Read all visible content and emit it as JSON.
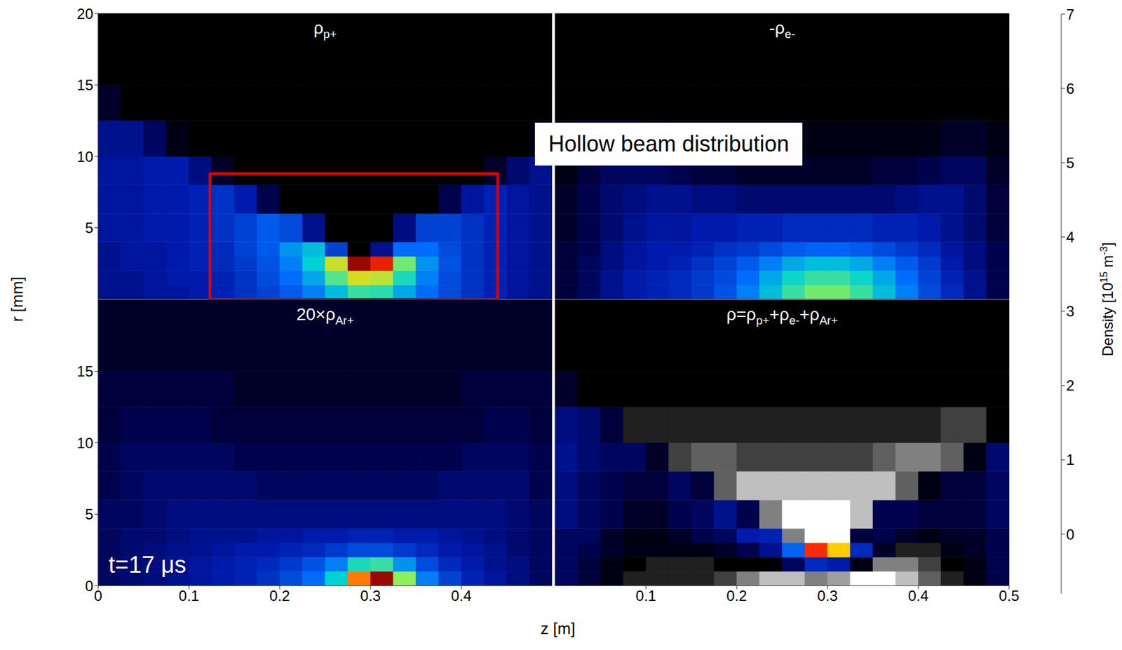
{
  "xlabel": "z [m]",
  "ylabel": "r [mm]",
  "annotation_box": "Hollow beam distribution",
  "time_label": "t=17 μs",
  "colorbar": {
    "label": [
      "Density [10",
      "15",
      " m",
      "-3",
      "]"
    ],
    "range": [
      -0.8,
      7
    ],
    "ticks": [
      0,
      1,
      2,
      3,
      4,
      5,
      6,
      7
    ]
  },
  "z_edges": [
    0,
    0.025,
    0.05,
    0.075,
    0.1,
    0.125,
    0.15,
    0.175,
    0.2,
    0.225,
    0.25,
    0.275,
    0.3,
    0.325,
    0.35,
    0.375,
    0.4,
    0.425,
    0.45,
    0.475,
    0.5
  ],
  "r_edges": [
    0,
    1,
    2,
    3,
    4,
    6,
    8,
    10,
    12.5,
    15,
    20
  ],
  "chart_data": [
    {
      "type": "heatmap",
      "title": [
        "ρ",
        "p+"
      ],
      "xlim": [
        0,
        0.5
      ],
      "ylim": [
        0,
        20
      ],
      "yticks": [
        5,
        10,
        15,
        20
      ],
      "tick_labels": "y",
      "highlight": {
        "z": [
          0.123,
          0.44
        ],
        "r": [
          0,
          8.8
        ],
        "color": "#e00000"
      },
      "cells": [
        [
          0.8,
          0.8,
          0.9,
          0.9,
          1.0,
          1.1,
          1.3,
          1.5,
          1.8,
          2.2,
          2.8,
          3.4,
          3.3,
          2.6,
          2.0,
          1.6,
          1.3,
          1.1,
          0.9,
          0.8
        ],
        [
          0.8,
          0.8,
          0.9,
          1.0,
          1.0,
          1.1,
          1.3,
          1.6,
          2.0,
          2.6,
          3.6,
          4.6,
          4.4,
          3.2,
          2.2,
          1.6,
          1.3,
          1.1,
          0.9,
          0.8
        ],
        [
          0.8,
          0.9,
          0.9,
          1.0,
          1.1,
          1.2,
          1.4,
          1.7,
          2.2,
          3.0,
          4.5,
          6.8,
          6.2,
          3.8,
          2.4,
          1.7,
          1.3,
          1.1,
          0.9,
          0.8
        ],
        [
          0.8,
          0.9,
          0.9,
          1.0,
          1.1,
          1.2,
          1.5,
          1.8,
          2.4,
          2.8,
          1.5,
          0,
          0.8,
          2.0,
          2.0,
          1.6,
          1.3,
          1.1,
          0.9,
          0.8
        ],
        [
          0.9,
          0.9,
          1.0,
          1.0,
          1.1,
          1.3,
          1.5,
          1.8,
          1.6,
          0.8,
          0,
          0,
          0,
          0.7,
          1.5,
          1.5,
          1.3,
          1.1,
          0.9,
          0.8
        ],
        [
          0.9,
          0.9,
          1.0,
          1.0,
          1.1,
          1.3,
          1.0,
          0.4,
          0,
          0,
          0,
          0,
          0,
          0,
          0,
          0.4,
          0.9,
          1.1,
          0.9,
          0.8
        ],
        [
          0.9,
          0.9,
          1.0,
          1.0,
          0.7,
          0.2,
          0,
          0,
          0,
          0,
          0,
          0,
          0,
          0,
          0,
          0,
          0,
          0.2,
          0.6,
          0.8
        ],
        [
          0.8,
          0.8,
          0.5,
          0.1,
          0,
          0,
          0,
          0,
          0,
          0,
          0,
          0,
          0,
          0,
          0,
          0,
          0,
          0,
          0,
          0.1
        ],
        [
          0.2,
          0,
          0,
          0,
          0,
          0,
          0,
          0,
          0,
          0,
          0,
          0,
          0,
          0,
          0,
          0,
          0,
          0,
          0,
          0
        ],
        [
          0,
          0,
          0,
          0,
          0,
          0,
          0,
          0,
          0,
          0,
          0,
          0,
          0,
          0,
          0,
          0,
          0,
          0,
          0,
          0
        ]
      ]
    },
    {
      "type": "heatmap",
      "title": [
        "-ρ",
        "e-"
      ],
      "xlim": [
        0,
        0.5
      ],
      "ylim": [
        0,
        20
      ],
      "tick_labels": false,
      "cells": [
        [
          0.3,
          0.5,
          0.8,
          1.0,
          1.1,
          1.2,
          1.4,
          1.7,
          2.2,
          2.8,
          3.4,
          3.8,
          3.8,
          3.4,
          2.8,
          2.2,
          1.6,
          1.2,
          0.8,
          0.4
        ],
        [
          0.3,
          0.5,
          0.8,
          1.0,
          1.1,
          1.2,
          1.4,
          1.6,
          2.0,
          2.6,
          3.1,
          3.4,
          3.4,
          3.1,
          2.6,
          2.0,
          1.5,
          1.1,
          0.8,
          0.4
        ],
        [
          0.3,
          0.5,
          0.7,
          0.9,
          1.0,
          1.1,
          1.3,
          1.5,
          1.8,
          2.2,
          2.6,
          2.8,
          2.8,
          2.6,
          2.2,
          1.8,
          1.4,
          1.0,
          0.7,
          0.4
        ],
        [
          0.3,
          0.4,
          0.7,
          0.9,
          1.0,
          1.0,
          1.1,
          1.3,
          1.4,
          1.6,
          1.8,
          1.9,
          1.9,
          1.8,
          1.6,
          1.4,
          1.2,
          0.9,
          0.7,
          0.4
        ],
        [
          0.2,
          0.4,
          0.6,
          0.8,
          0.9,
          0.9,
          1.0,
          1.0,
          1.1,
          1.1,
          1.2,
          1.2,
          1.2,
          1.2,
          1.1,
          1.1,
          1.0,
          0.8,
          0.6,
          0.3
        ],
        [
          0.2,
          0.4,
          0.6,
          0.7,
          0.8,
          0.8,
          0.7,
          0.7,
          0.6,
          0.6,
          0.6,
          0.6,
          0.6,
          0.6,
          0.6,
          0.7,
          0.8,
          0.8,
          0.6,
          0.3
        ],
        [
          0.1,
          0.3,
          0.5,
          0.5,
          0.5,
          0.4,
          0.3,
          0.3,
          0.2,
          0.2,
          0.2,
          0.2,
          0.2,
          0.2,
          0.3,
          0.3,
          0.4,
          0.5,
          0.5,
          0.2
        ],
        [
          0.1,
          0.2,
          0.2,
          0.2,
          0.1,
          0.1,
          0.1,
          0.1,
          0.1,
          0.1,
          0.1,
          0.1,
          0.1,
          0.1,
          0.1,
          0.1,
          0.1,
          0.2,
          0.2,
          0.1
        ],
        [
          0,
          0,
          0,
          0,
          0,
          0,
          0,
          0,
          0,
          0,
          0,
          0,
          0,
          0,
          0,
          0,
          0,
          0,
          0,
          0
        ],
        [
          0,
          0,
          0,
          0,
          0,
          0,
          0,
          0,
          0,
          0,
          0,
          0,
          0,
          0,
          0,
          0,
          0,
          0,
          0,
          0
        ]
      ]
    },
    {
      "type": "heatmap",
      "title": [
        "20×ρ",
        "Ar+"
      ],
      "xlim": [
        0,
        0.5
      ],
      "ylim": [
        0,
        20
      ],
      "xticks": [
        0,
        0.1,
        0.2,
        0.3,
        0.4
      ],
      "yticks": [
        0,
        5,
        10,
        15
      ],
      "tick_labels": true,
      "cells": [
        [
          0.5,
          0.6,
          0.7,
          0.8,
          0.9,
          1.0,
          1.1,
          1.3,
          1.6,
          2.0,
          3.0,
          5.5,
          6.8,
          4.0,
          2.2,
          1.5,
          1.1,
          0.9,
          0.7,
          0.5
        ],
        [
          0.5,
          0.6,
          0.7,
          0.8,
          0.9,
          1.0,
          1.1,
          1.2,
          1.4,
          1.7,
          2.2,
          3.2,
          3.4,
          2.4,
          1.6,
          1.2,
          1.0,
          0.8,
          0.7,
          0.5
        ],
        [
          0.5,
          0.6,
          0.7,
          0.8,
          0.8,
          0.9,
          1.0,
          1.0,
          1.1,
          1.2,
          1.4,
          1.6,
          1.6,
          1.4,
          1.2,
          1.0,
          0.9,
          0.8,
          0.6,
          0.5
        ],
        [
          0.5,
          0.6,
          0.6,
          0.7,
          0.8,
          0.8,
          0.8,
          0.9,
          0.9,
          1.0,
          1.0,
          1.1,
          1.1,
          1.0,
          1.0,
          0.9,
          0.8,
          0.7,
          0.6,
          0.5
        ],
        [
          0.5,
          0.5,
          0.6,
          0.7,
          0.7,
          0.7,
          0.7,
          0.7,
          0.7,
          0.7,
          0.7,
          0.7,
          0.7,
          0.7,
          0.7,
          0.7,
          0.7,
          0.7,
          0.6,
          0.5
        ],
        [
          0.4,
          0.5,
          0.6,
          0.6,
          0.6,
          0.6,
          0.6,
          0.5,
          0.5,
          0.5,
          0.5,
          0.5,
          0.5,
          0.5,
          0.5,
          0.6,
          0.6,
          0.6,
          0.6,
          0.4
        ],
        [
          0.4,
          0.5,
          0.5,
          0.5,
          0.5,
          0.5,
          0.4,
          0.4,
          0.4,
          0.4,
          0.4,
          0.4,
          0.4,
          0.4,
          0.4,
          0.4,
          0.5,
          0.5,
          0.5,
          0.4
        ],
        [
          0.3,
          0.4,
          0.4,
          0.4,
          0.4,
          0.3,
          0.3,
          0.3,
          0.3,
          0.3,
          0.3,
          0.3,
          0.3,
          0.3,
          0.3,
          0.3,
          0.3,
          0.4,
          0.4,
          0.3
        ],
        [
          0.3,
          0.3,
          0.3,
          0.3,
          0.3,
          0.3,
          0.2,
          0.2,
          0.2,
          0.2,
          0.2,
          0.2,
          0.2,
          0.2,
          0.2,
          0.2,
          0.3,
          0.3,
          0.3,
          0.3
        ],
        [
          0.2,
          0.2,
          0.2,
          0.2,
          0.2,
          0.2,
          0.2,
          0.2,
          0.2,
          0.2,
          0.2,
          0.2,
          0.2,
          0.2,
          0.2,
          0.2,
          0.2,
          0.2,
          0.2,
          0.2
        ]
      ]
    },
    {
      "type": "heatmap",
      "title": [
        "ρ=ρ",
        "p+",
        "+ρ",
        "e-",
        "+ρ",
        "Ar+"
      ],
      "xlim": [
        0,
        0.5
      ],
      "ylim": [
        0,
        20
      ],
      "xticks": [
        0.1,
        0.2,
        0.3,
        0.4,
        0.5
      ],
      "tick_labels": "x",
      "cells": [
        [
          0.5,
          0.3,
          0.1,
          -0.1,
          -0.1,
          -0.1,
          -0.1,
          -0.2,
          -0.4,
          -0.6,
          -0.6,
          -0.4,
          -0.5,
          -0.8,
          -0.8,
          -0.6,
          -0.3,
          -0.1,
          0.1,
          0.4
        ],
        [
          0.5,
          0.3,
          0.1,
          0,
          -0.1,
          -0.1,
          -0.1,
          0,
          0,
          0,
          0.5,
          1.2,
          1.0,
          0.1,
          -0.4,
          -0.4,
          -0.2,
          0,
          0.1,
          0.4
        ],
        [
          0.5,
          0.4,
          0.2,
          0.1,
          0.1,
          0.1,
          0.1,
          0.2,
          0.4,
          0.8,
          1.9,
          6.0,
          5.0,
          1.2,
          0.2,
          -0.1,
          -0.1,
          0.1,
          0.2,
          0.4
        ],
        [
          0.5,
          0.5,
          0.2,
          0.1,
          0.1,
          0.2,
          0.4,
          0.5,
          1.0,
          1.1,
          -0.4,
          -0.8,
          -0.8,
          0.3,
          0.4,
          0.2,
          0.1,
          0.2,
          0.2,
          0.4
        ],
        [
          0.7,
          0.5,
          0.4,
          0.2,
          0.2,
          0.4,
          0.5,
          0.8,
          0.4,
          -0.4,
          -0.8,
          -0.8,
          -0.8,
          -0.6,
          0.4,
          0.4,
          0.3,
          0.3,
          0.3,
          0.5
        ],
        [
          0.7,
          0.5,
          0.4,
          0.3,
          0.3,
          0.5,
          0.3,
          -0.3,
          -0.6,
          -0.6,
          -0.6,
          -0.6,
          -0.6,
          -0.6,
          -0.6,
          -0.3,
          0.1,
          0.3,
          0.3,
          0.5
        ],
        [
          0.8,
          0.6,
          0.5,
          0.5,
          0.2,
          -0.2,
          -0.3,
          -0.3,
          -0.2,
          -0.2,
          -0.2,
          -0.2,
          -0.2,
          -0.2,
          -0.3,
          -0.4,
          -0.4,
          -0.3,
          0.1,
          0.6
        ],
        [
          0.7,
          0.6,
          0.3,
          -0.1,
          -0.1,
          -0.1,
          -0.1,
          -0.1,
          -0.1,
          -0.1,
          -0.1,
          -0.1,
          -0.1,
          -0.1,
          -0.1,
          -0.1,
          -0.1,
          -0.2,
          -0.2,
          0
        ],
        [
          0.2,
          0,
          0,
          0,
          0,
          0,
          0,
          0,
          0,
          0,
          0,
          0,
          0,
          0,
          0,
          0,
          0,
          0,
          0,
          0
        ],
        [
          0,
          0,
          0,
          0,
          0,
          0,
          0,
          0,
          0,
          0,
          0,
          0,
          0,
          0,
          0,
          0,
          0,
          0,
          0,
          0
        ]
      ]
    }
  ]
}
